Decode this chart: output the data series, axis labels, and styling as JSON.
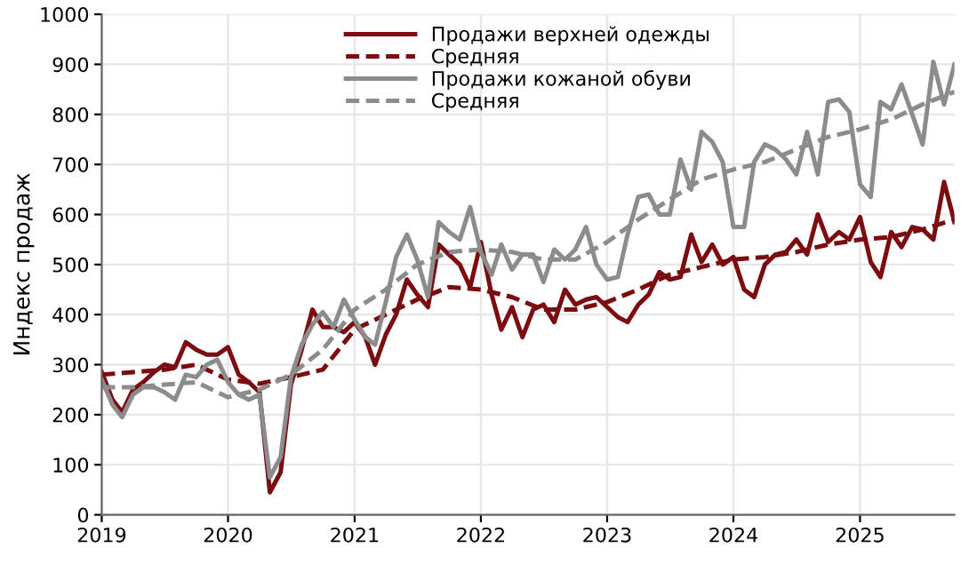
{
  "chart_data": {
    "type": "line",
    "ylabel": "Индекс продаж",
    "x": [
      "2019-01",
      "2019-02",
      "2019-03",
      "2019-04",
      "2019-05",
      "2019-06",
      "2019-07",
      "2019-08",
      "2019-09",
      "2019-10",
      "2019-11",
      "2019-12",
      "2020-01",
      "2020-02",
      "2020-03",
      "2020-04",
      "2020-05",
      "2020-06",
      "2020-07",
      "2020-08",
      "2020-09",
      "2020-10",
      "2020-11",
      "2020-12",
      "2021-01",
      "2021-02",
      "2021-03",
      "2021-04",
      "2021-05",
      "2021-06",
      "2021-07",
      "2021-08",
      "2021-09",
      "2021-10",
      "2021-11",
      "2021-12",
      "2022-01",
      "2022-02",
      "2022-03",
      "2022-04",
      "2022-05",
      "2022-06",
      "2022-07",
      "2022-08",
      "2022-09",
      "2022-10",
      "2022-11",
      "2022-12",
      "2023-01",
      "2023-02",
      "2023-03",
      "2023-04",
      "2023-05",
      "2023-06",
      "2023-07",
      "2023-08",
      "2023-09",
      "2023-10",
      "2023-11",
      "2023-12",
      "2024-01",
      "2024-02",
      "2024-03",
      "2024-04",
      "2024-05",
      "2024-06",
      "2024-07",
      "2024-08",
      "2024-09",
      "2024-10",
      "2024-11",
      "2024-12",
      "2025-01",
      "2025-02",
      "2025-03",
      "2025-04",
      "2025-05",
      "2025-06",
      "2025-07",
      "2025-08",
      "2025-09",
      "2025-10"
    ],
    "series": [
      {
        "name": "Продажи верхней одежды",
        "color": "#7b0c10",
        "line_style": "solid",
        "values": [
          285,
          230,
          205,
          250,
          265,
          285,
          300,
          295,
          345,
          330,
          320,
          320,
          335,
          280,
          265,
          245,
          45,
          85,
          260,
          330,
          410,
          375,
          375,
          365,
          385,
          355,
          300,
          360,
          400,
          470,
          440,
          415,
          540,
          520,
          500,
          455,
          545,
          440,
          370,
          415,
          355,
          410,
          420,
          385,
          450,
          420,
          430,
          435,
          415,
          395,
          385,
          420,
          440,
          485,
          470,
          475,
          560,
          505,
          540,
          500,
          515,
          450,
          435,
          500,
          520,
          525,
          550,
          520,
          600,
          545,
          565,
          550,
          595,
          505,
          475,
          565,
          535,
          575,
          570,
          550,
          665,
          585
        ]
      },
      {
        "name": "Средняя",
        "color": "#7b0c10",
        "line_style": "dashed",
        "x": [
          "2019-01",
          "2019-04",
          "2019-07",
          "2019-10",
          "2020-01",
          "2020-04",
          "2020-07",
          "2020-10",
          "2021-01",
          "2021-04",
          "2021-07",
          "2021-10",
          "2022-01",
          "2022-04",
          "2022-07",
          "2022-10",
          "2023-01",
          "2023-04",
          "2023-07",
          "2023-10",
          "2024-01",
          "2024-04",
          "2024-07",
          "2024-10",
          "2025-01",
          "2025-04",
          "2025-07",
          "2025-10"
        ],
        "values": [
          280,
          285,
          290,
          300,
          270,
          262,
          275,
          290,
          370,
          400,
          430,
          455,
          450,
          435,
          410,
          410,
          425,
          450,
          480,
          495,
          510,
          515,
          525,
          540,
          550,
          555,
          570,
          590
        ]
      },
      {
        "name": "Продажи кожаной обуви",
        "color": "#8c8c8c",
        "line_style": "solid",
        "values": [
          270,
          220,
          195,
          240,
          255,
          255,
          245,
          230,
          280,
          275,
          300,
          310,
          265,
          240,
          230,
          240,
          75,
          115,
          275,
          340,
          380,
          405,
          375,
          430,
          390,
          355,
          340,
          425,
          515,
          560,
          510,
          435,
          585,
          565,
          550,
          615,
          525,
          480,
          540,
          490,
          520,
          520,
          465,
          530,
          510,
          530,
          575,
          500,
          470,
          475,
          560,
          635,
          640,
          600,
          600,
          710,
          650,
          765,
          745,
          705,
          575,
          575,
          705,
          740,
          730,
          710,
          680,
          765,
          680,
          825,
          830,
          805,
          660,
          635,
          825,
          810,
          860,
          800,
          740,
          905,
          820,
          900
        ]
      },
      {
        "name": "Средняя",
        "color": "#8c8c8c",
        "line_style": "dashed",
        "x": [
          "2019-01",
          "2019-04",
          "2019-07",
          "2019-10",
          "2020-01",
          "2020-04",
          "2020-07",
          "2020-10",
          "2021-01",
          "2021-04",
          "2021-07",
          "2021-10",
          "2022-01",
          "2022-04",
          "2022-07",
          "2022-10",
          "2023-01",
          "2023-04",
          "2023-07",
          "2023-10",
          "2024-01",
          "2024-04",
          "2024-07",
          "2024-10",
          "2025-01",
          "2025-04",
          "2025-07",
          "2025-10"
        ],
        "values": [
          255,
          255,
          260,
          265,
          235,
          250,
          280,
          330,
          410,
          450,
          500,
          525,
          530,
          525,
          510,
          510,
          545,
          590,
          630,
          670,
          690,
          705,
          730,
          755,
          770,
          790,
          820,
          845
        ]
      }
    ],
    "xlim": [
      "2019",
      "2025-10"
    ],
    "xticks": [
      "2019",
      "2020",
      "2021",
      "2022",
      "2023",
      "2024",
      "2025"
    ],
    "ylim": [
      0,
      1000
    ],
    "yticks": [
      0,
      100,
      200,
      300,
      400,
      500,
      600,
      700,
      800,
      900,
      1000
    ],
    "grid": true,
    "legend": "top"
  }
}
